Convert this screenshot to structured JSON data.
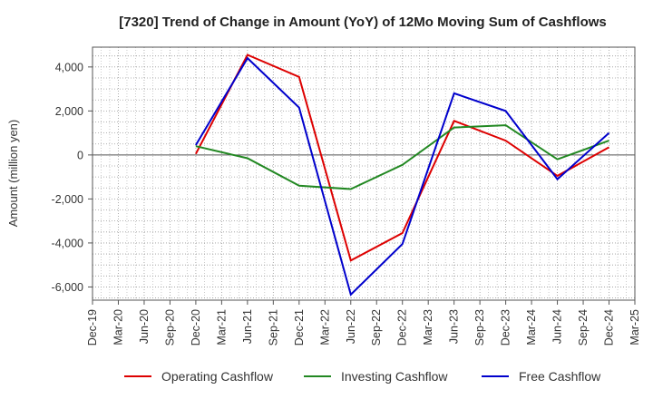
{
  "chart_data": {
    "type": "line",
    "title": "[7320]  Trend of Change in Amount (YoY) of 12Mo Moving Sum of Cashflows",
    "xlabel": "",
    "ylabel": "Amount (million yen)",
    "ylim": [
      -6600,
      4900
    ],
    "yticks": [
      4000,
      2000,
      0,
      -2000,
      -4000,
      -6000
    ],
    "ytick_labels": [
      "4,000",
      "2,000",
      "0",
      "-2,000",
      "-4,000",
      "-6,000"
    ],
    "x_tick_labels": [
      "Dec-19",
      "Mar-20",
      "Jun-20",
      "Sep-20",
      "Dec-20",
      "Mar-21",
      "Jun-21",
      "Sep-21",
      "Dec-21",
      "Mar-22",
      "Jun-22",
      "Sep-22",
      "Dec-22",
      "Mar-23",
      "Jun-23",
      "Sep-23",
      "Dec-23",
      "Mar-24",
      "Jun-24",
      "Sep-24",
      "Dec-24",
      "Mar-25"
    ],
    "x": [
      "Dec-20",
      "Jun-21",
      "Dec-21",
      "Jun-22",
      "Dec-22",
      "Jun-23",
      "Dec-23",
      "Jun-24",
      "Dec-24"
    ],
    "grid": true,
    "legend_position": "bottom",
    "series": [
      {
        "name": "Operating Cashflow",
        "color": "#dd0000",
        "values": [
          50,
          4550,
          3550,
          -4800,
          -3550,
          1550,
          650,
          -950,
          350
        ]
      },
      {
        "name": "Investing Cashflow",
        "color": "#228822",
        "values": [
          400,
          -150,
          -1400,
          -1550,
          -450,
          1250,
          1350,
          -200,
          650
        ]
      },
      {
        "name": "Free Cashflow",
        "color": "#0000cc",
        "values": [
          450,
          4400,
          2150,
          -6350,
          -4050,
          2800,
          2000,
          -1100,
          1000
        ]
      }
    ]
  }
}
